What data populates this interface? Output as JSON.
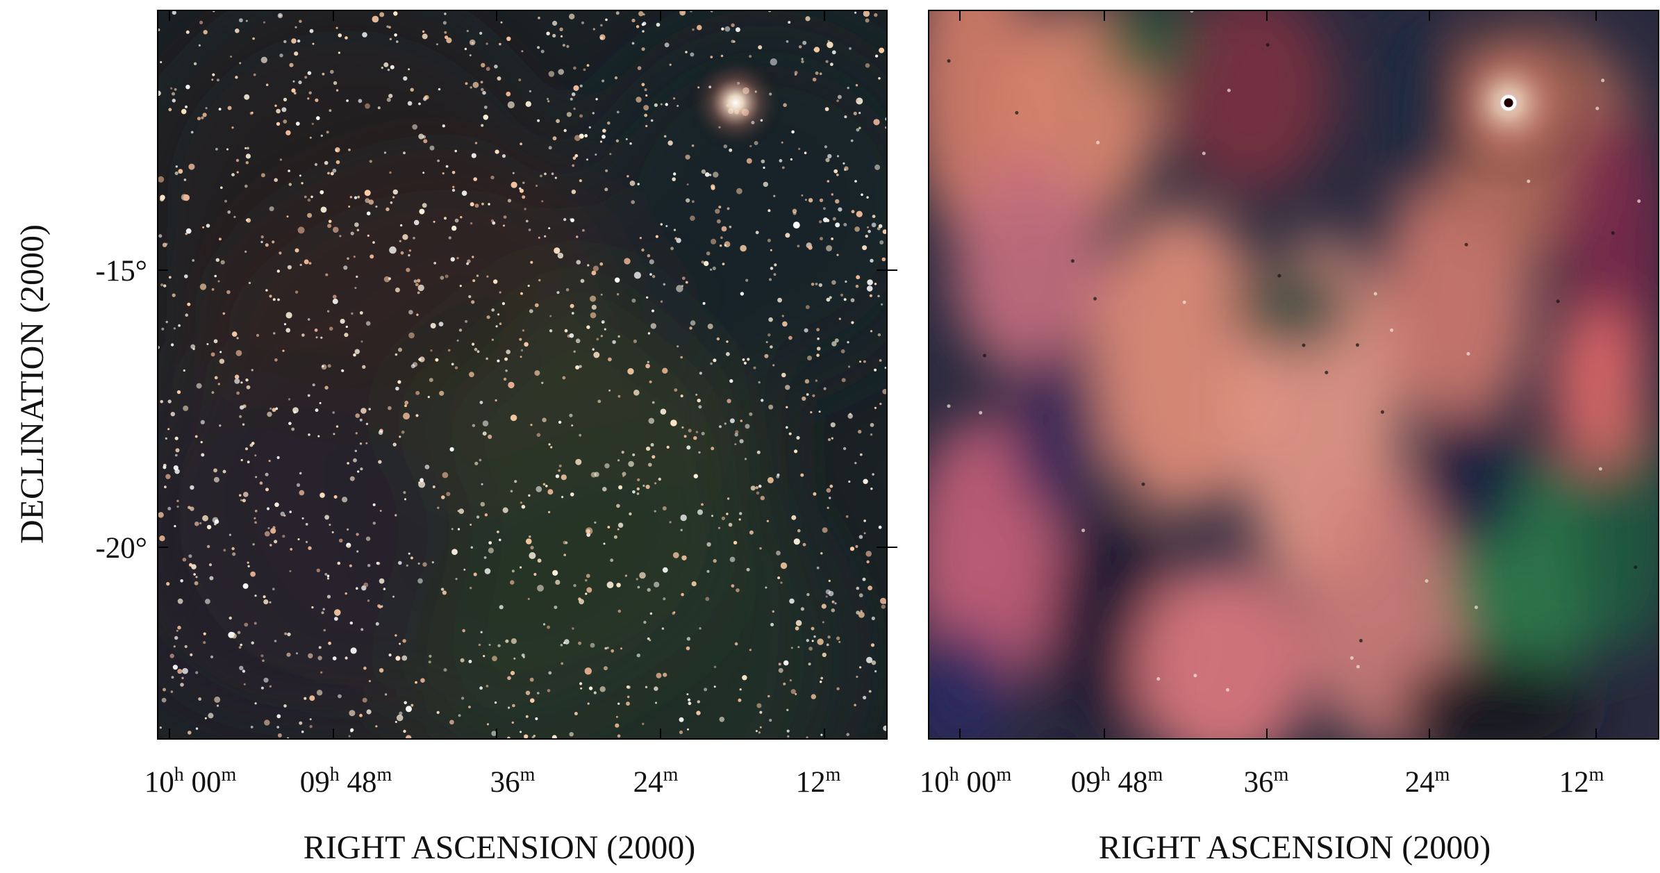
{
  "panels": [
    {
      "xticks": [
        [
          "10",
          "h",
          " 00",
          "m"
        ],
        [
          "09",
          "h",
          " 48",
          "m"
        ],
        [
          "36",
          "m"
        ],
        [
          "24",
          "m"
        ],
        [
          "12",
          "m"
        ]
      ],
      "xlabel": "RIGHT ASCENSION  (2000)",
      "yticks": [
        "-15°",
        "-20°"
      ],
      "ylabel": "DECLINATION  (2000)"
    },
    {
      "xticks": [
        [
          "10",
          "h",
          " 00",
          "m"
        ],
        [
          "09",
          "h",
          " 48",
          "m"
        ],
        [
          "36",
          "m"
        ],
        [
          "24",
          "m"
        ],
        [
          "12",
          "m"
        ]
      ],
      "xlabel": "RIGHT ASCENSION  (2000)"
    }
  ]
}
